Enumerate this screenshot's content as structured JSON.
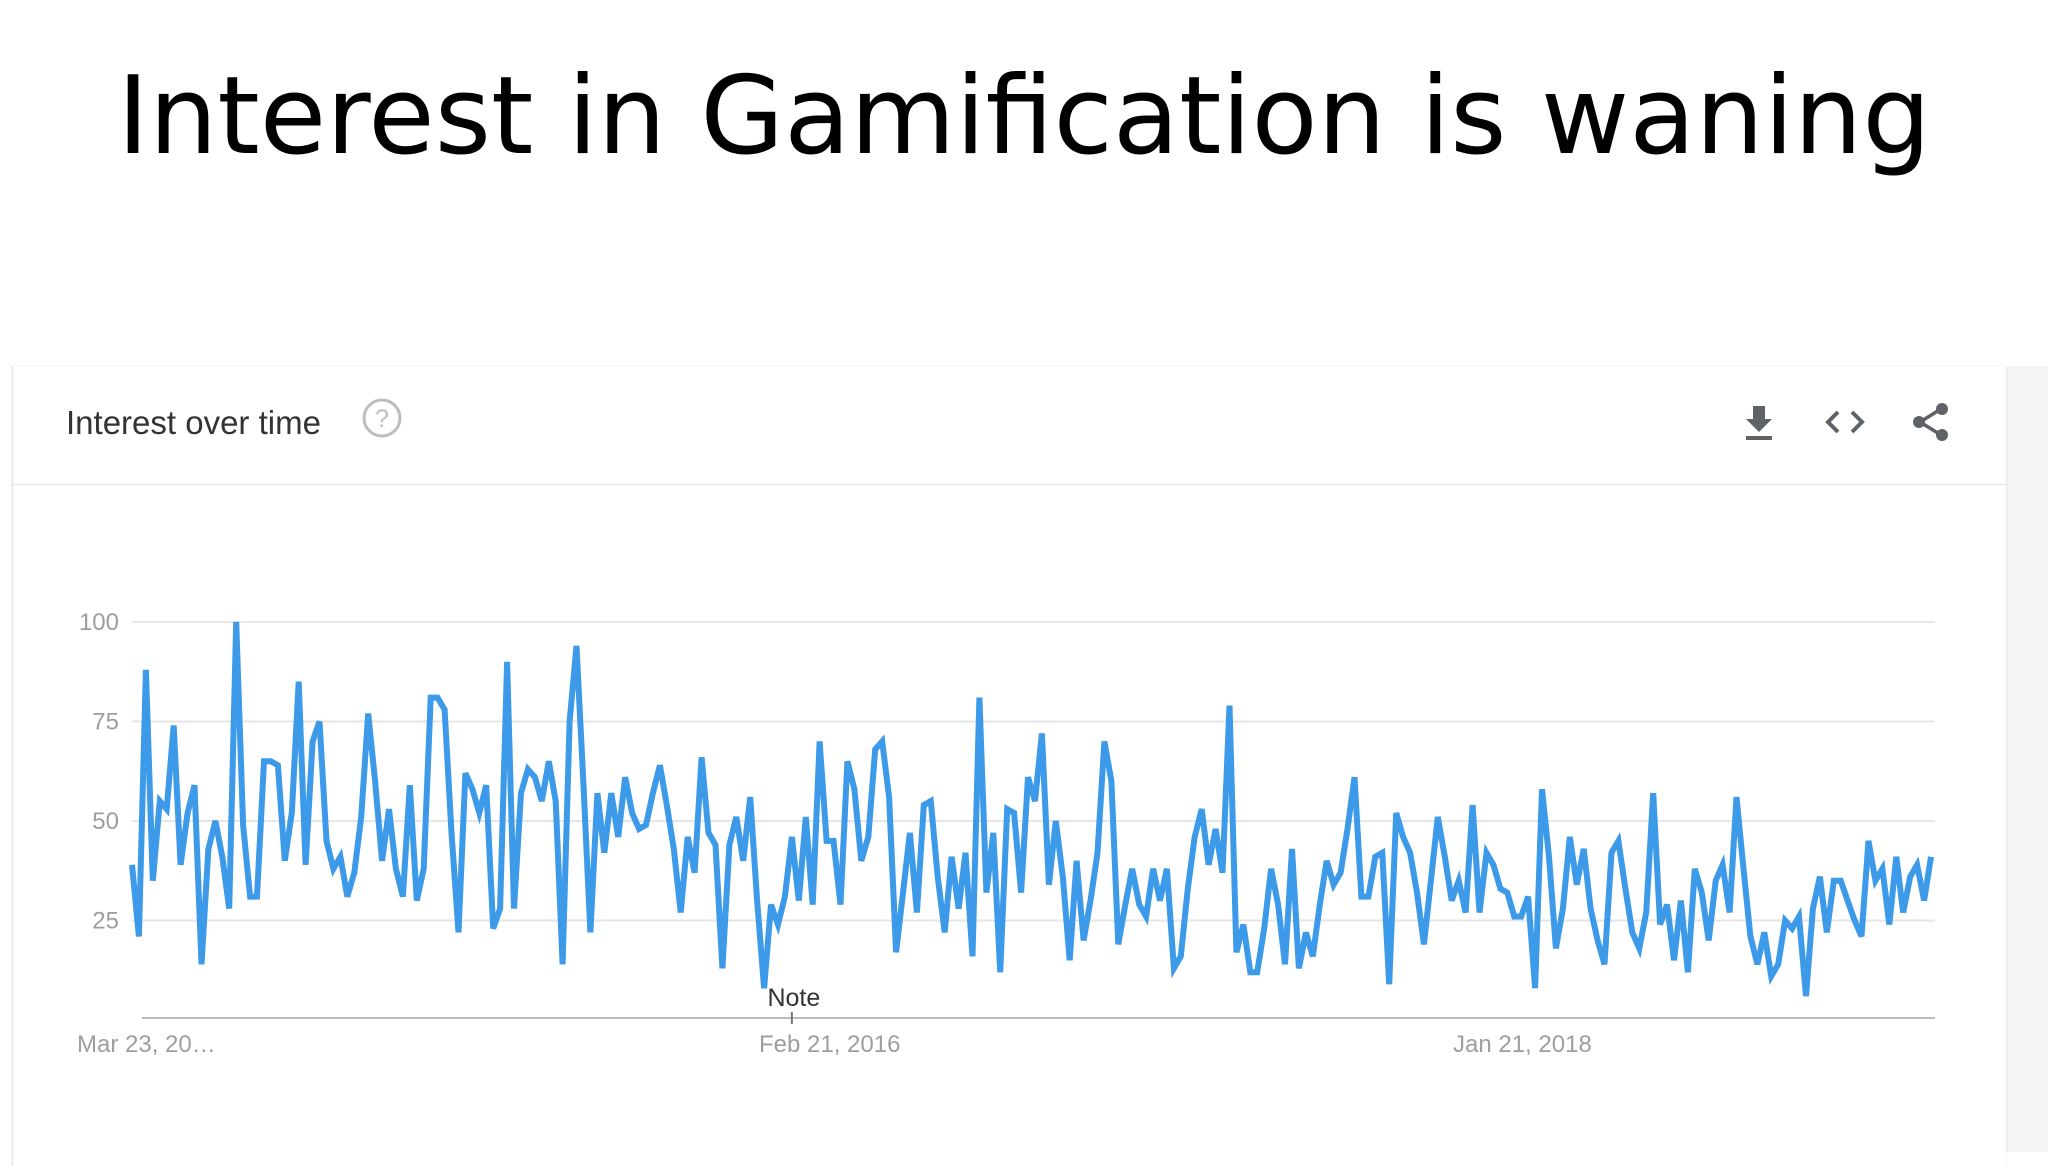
{
  "slide": {
    "title": "Interest in Gamification is waning"
  },
  "card": {
    "title": "Interest over time",
    "icons": {
      "help": "help-circle-icon",
      "download": "download-icon",
      "embed": "code-embed-icon",
      "share": "share-icon"
    }
  },
  "colors": {
    "series": "#3d9ae8",
    "grid": "#e6e6e6",
    "axis": "#bdbdbd",
    "tick_text": "#9e9e9e"
  },
  "chart_data": {
    "type": "line",
    "title": "",
    "xlabel": "",
    "ylabel": "",
    "ylim": [
      0,
      100
    ],
    "grid": true,
    "legend": "none",
    "y_ticks": [
      "25",
      "50",
      "75",
      "100"
    ],
    "x_ticks": [
      {
        "label": "Mar 23, 20…",
        "index": 0
      },
      {
        "label": "Feb 21, 2016",
        "index": 100
      },
      {
        "label": "Jan 21, 2018",
        "index": 204
      }
    ],
    "annotation": {
      "label": "Note",
      "index": 95
    },
    "series": [
      {
        "values": [
          39,
          21,
          88,
          35,
          55,
          53,
          74,
          39,
          52,
          59,
          14,
          43,
          50,
          41,
          28,
          100,
          49,
          31,
          31,
          65,
          65,
          64,
          40,
          52,
          85,
          39,
          70,
          75,
          45,
          38,
          41,
          31,
          37,
          51,
          77,
          60,
          40,
          53,
          38,
          31,
          59,
          30,
          38,
          81,
          81,
          78,
          47,
          22,
          62,
          58,
          52,
          59,
          23,
          28,
          90,
          28,
          57,
          63,
          61,
          55,
          65,
          55,
          14,
          75,
          94,
          59,
          22,
          57,
          42,
          57,
          46,
          61,
          52,
          48,
          49,
          57,
          64,
          54,
          43,
          27,
          46,
          37,
          66,
          47,
          44,
          13,
          44,
          51,
          40,
          56,
          30,
          8,
          29,
          24,
          31,
          46,
          30,
          51,
          29,
          70,
          45,
          45,
          29,
          65,
          58,
          40,
          46,
          68,
          70,
          56,
          17,
          32,
          47,
          27,
          54,
          55,
          36,
          22,
          41,
          28,
          42,
          16,
          81,
          32,
          47,
          12,
          53,
          52,
          32,
          61,
          55,
          72,
          34,
          50,
          36,
          15,
          40,
          20,
          30,
          42,
          70,
          60,
          19,
          29,
          38,
          29,
          26,
          38,
          30,
          38,
          13,
          16,
          33,
          46,
          53,
          39,
          48,
          37,
          79,
          17,
          24,
          12,
          12,
          23,
          38,
          29,
          14,
          43,
          13,
          22,
          16,
          29,
          40,
          34,
          37,
          48,
          61,
          31,
          31,
          41,
          42,
          9,
          52,
          46,
          42,
          32,
          19,
          35,
          51,
          41,
          30,
          35,
          27,
          54,
          27,
          42,
          39,
          33,
          32,
          26,
          26,
          31,
          8,
          58,
          41,
          18,
          28,
          46,
          34,
          43,
          28,
          20,
          14,
          42,
          45,
          33,
          22,
          18,
          27,
          57,
          24,
          29,
          15,
          30,
          12,
          38,
          32,
          20,
          35,
          39,
          27,
          56,
          38,
          21,
          14,
          22,
          11,
          14,
          25,
          23,
          26,
          6,
          28,
          36,
          22,
          35,
          35,
          30,
          25,
          21,
          45,
          35,
          38,
          24,
          41,
          27,
          36,
          39,
          30,
          41
        ]
      }
    ]
  }
}
